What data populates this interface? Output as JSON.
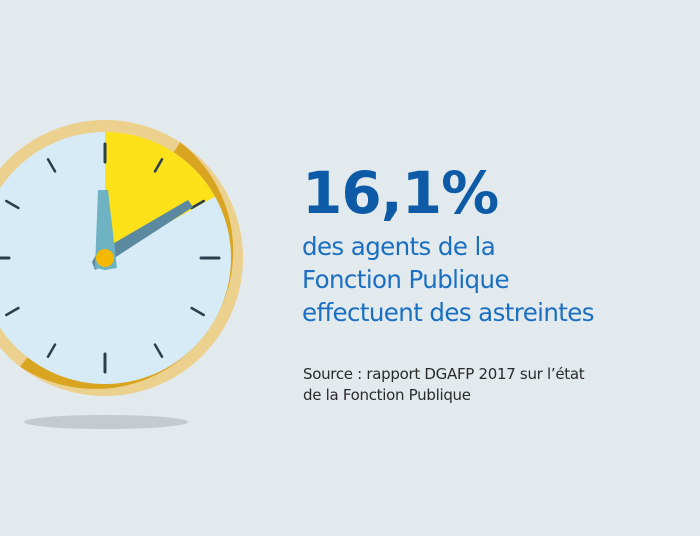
{
  "stat": {
    "value": "16,1%",
    "description_lines": [
      "des agents de la",
      "Fonction Publique",
      "effectuent des astreintes"
    ]
  },
  "source": {
    "lines": [
      "Source : rapport DGAFP 2017 sur l’état",
      "de la Fonction Publique"
    ]
  },
  "illustration": {
    "icon": "clock-icon",
    "highlighted_share_percent": 16.1
  },
  "colors": {
    "background": "#e2eaee",
    "stat_value": "#0d5aa7",
    "stat_text": "#1a6fc1",
    "clock_ring": "#d9a520",
    "clock_ring_light": "#ecd08e",
    "clock_face": "#d6ebf6",
    "clock_wedge": "#fde21a",
    "minute_hand": "#5b8aa0",
    "hour_hand": "#6fb2c2",
    "hub": "#f5b800"
  }
}
